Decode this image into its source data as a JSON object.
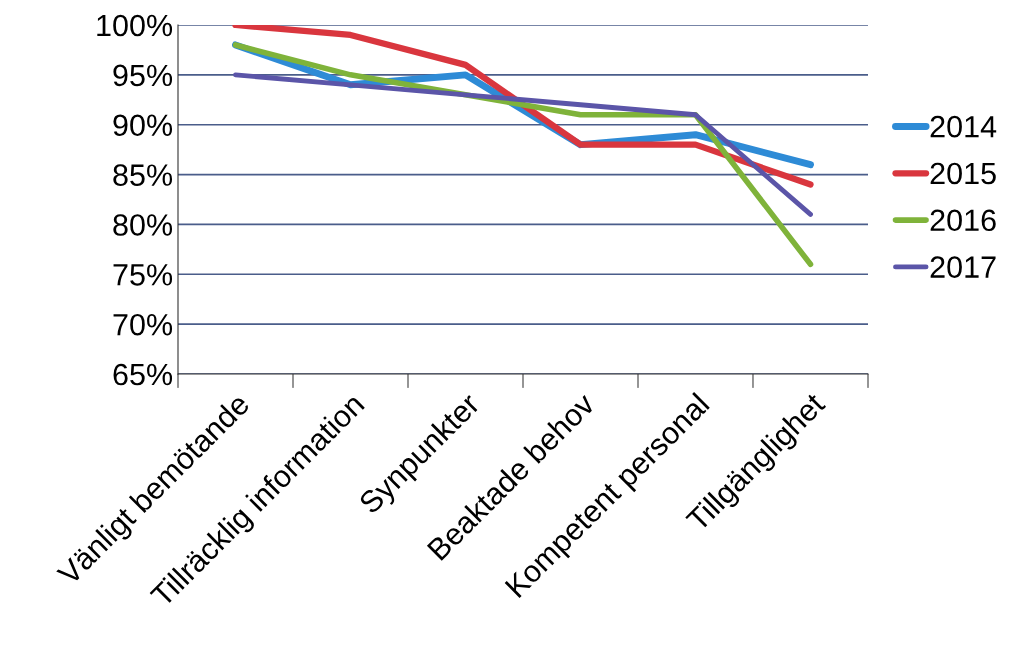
{
  "chart_data": {
    "type": "line",
    "categories": [
      "Vänligt bemötande",
      "Tillräcklig information",
      "Synpunkter",
      "Beaktade behov",
      "Kompetent personal",
      "Tillgänglighet"
    ],
    "series": [
      {
        "name": "2014",
        "color": "#2e8bd6",
        "values": [
          98,
          94,
          95,
          88,
          89,
          86
        ]
      },
      {
        "name": "2015",
        "color": "#d9363e",
        "values": [
          100,
          99,
          96,
          88,
          88,
          84
        ]
      },
      {
        "name": "2016",
        "color": "#7fb33a",
        "values": [
          98,
          95,
          93,
          91,
          91,
          76
        ]
      },
      {
        "name": "2017",
        "color": "#5b55a8",
        "values": [
          95,
          94,
          93,
          92,
          91,
          81
        ]
      }
    ],
    "ylim": [
      65,
      100
    ],
    "yticks": [
      {
        "value": 65,
        "label": "65%"
      },
      {
        "value": 70,
        "label": "70%"
      },
      {
        "value": 75,
        "label": "75%"
      },
      {
        "value": 80,
        "label": "80%"
      },
      {
        "value": 85,
        "label": "85%"
      },
      {
        "value": 90,
        "label": "90%"
      },
      {
        "value": 95,
        "label": "95%"
      },
      {
        "value": 100,
        "label": "100%"
      }
    ],
    "grid": "y",
    "legend": "right"
  }
}
